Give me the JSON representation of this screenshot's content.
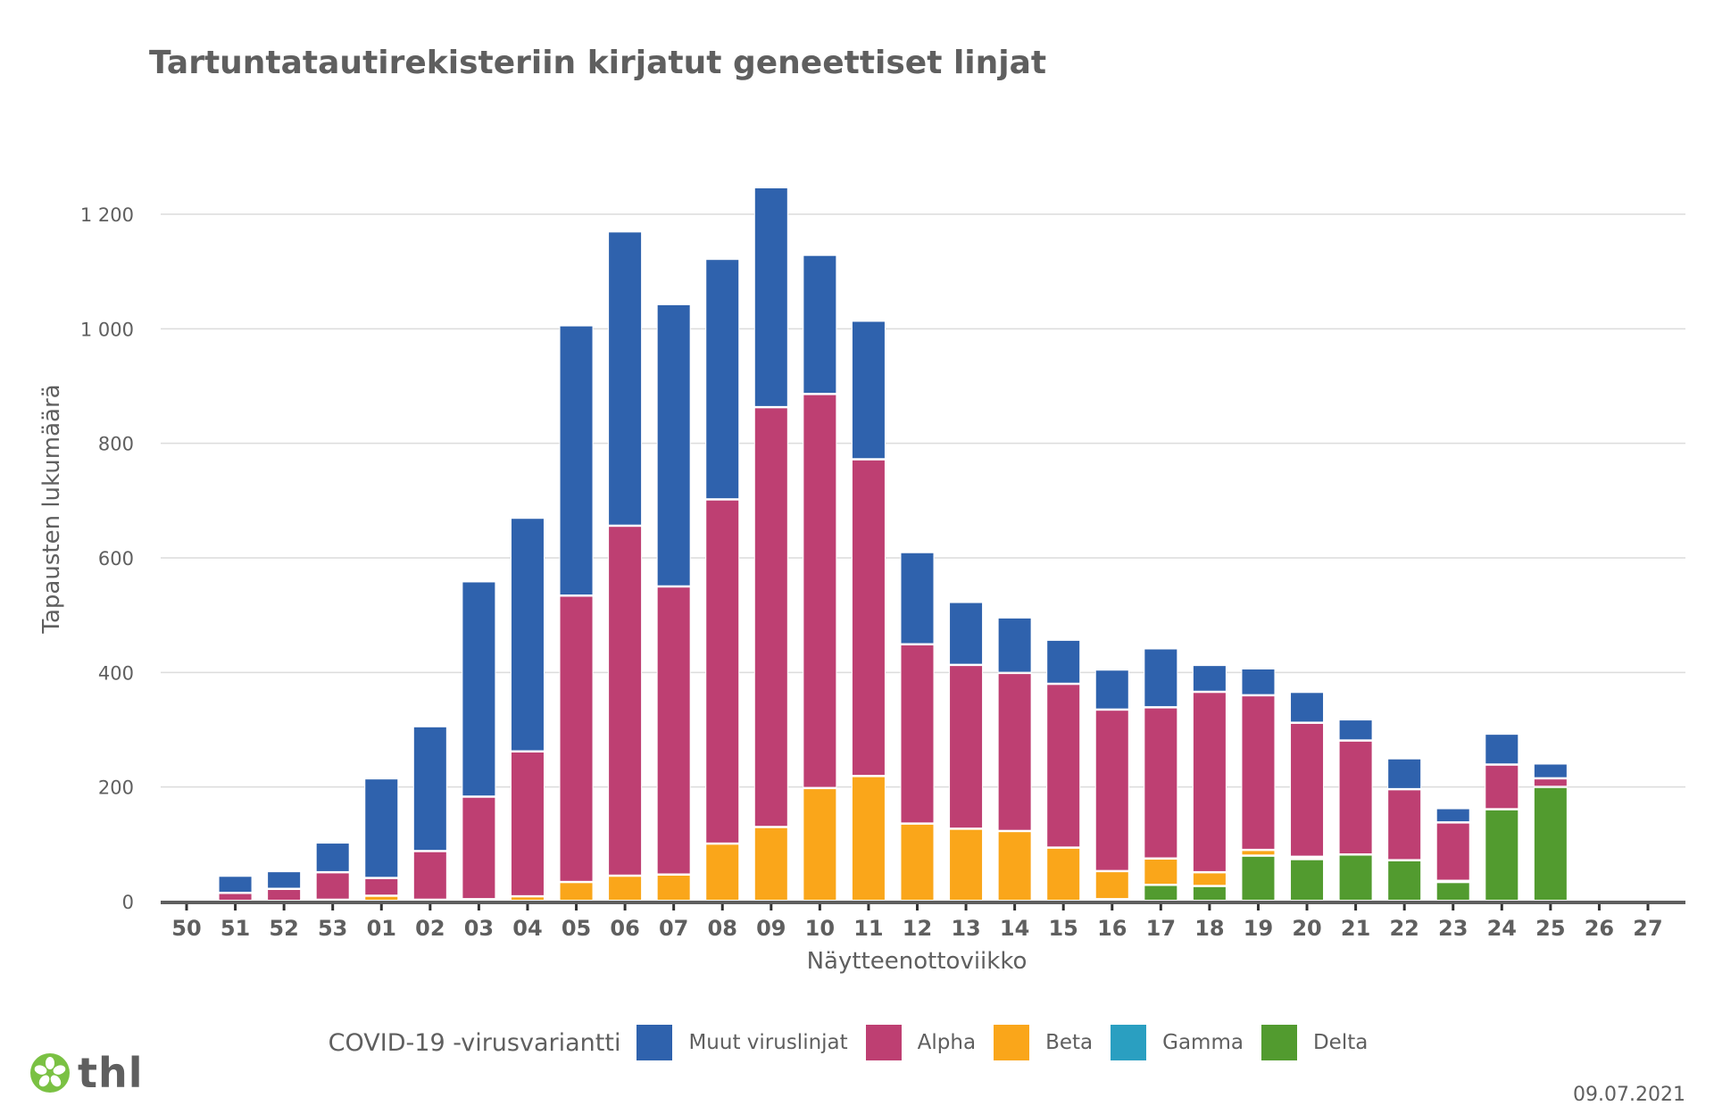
{
  "chart_data": {
    "type": "bar",
    "stacked": true,
    "title": "Tartuntatautirekisteriin kirjatut geneettiset linjat",
    "xlabel": "Näytteenottoviikko",
    "ylabel": "Tapausten lukumäärä",
    "ylim": [
      0,
      1300
    ],
    "yticks": [
      0,
      200,
      400,
      600,
      800,
      1000,
      1200
    ],
    "ytick_labels": [
      "0",
      "200",
      "400",
      "600",
      "800",
      "1 000",
      "1 200"
    ],
    "grid": true,
    "legend_title": "COVID-19 -virusvariantti",
    "legend_placement": "bottom",
    "categories": [
      "50",
      "51",
      "52",
      "53",
      "01",
      "02",
      "03",
      "04",
      "05",
      "06",
      "07",
      "08",
      "09",
      "10",
      "11",
      "12",
      "13",
      "14",
      "15",
      "16",
      "17",
      "18",
      "19",
      "20",
      "21",
      "22",
      "23",
      "24",
      "25",
      "26",
      "27"
    ],
    "series": [
      {
        "name": "Delta",
        "color": "#529b2f",
        "values": [
          0,
          0,
          0,
          0,
          0,
          0,
          0,
          0,
          0,
          0,
          0,
          0,
          0,
          0,
          0,
          0,
          0,
          0,
          0,
          3,
          28,
          26,
          79,
          73,
          81,
          71,
          33,
          160,
          199,
          0,
          0
        ]
      },
      {
        "name": "Gamma",
        "color": "#2a9fc1",
        "values": [
          0,
          0,
          0,
          0,
          0,
          0,
          0,
          0,
          0,
          0,
          0,
          0,
          0,
          0,
          0,
          0,
          0,
          0,
          0,
          0,
          0,
          0,
          0,
          0,
          0,
          0,
          0,
          0,
          0,
          0,
          0
        ]
      },
      {
        "name": "Beta",
        "color": "#faa61a",
        "values": [
          0,
          0,
          0,
          2,
          9,
          2,
          3,
          8,
          33,
          44,
          46,
          100,
          129,
          197,
          218,
          135,
          126,
          122,
          93,
          49,
          46,
          24,
          10,
          4,
          0,
          0,
          2,
          0,
          0,
          0,
          0
        ]
      },
      {
        "name": "Alpha",
        "color": "#be3f72",
        "values": [
          0,
          14,
          21,
          48,
          31,
          85,
          179,
          253,
          500,
          611,
          503,
          601,
          733,
          688,
          553,
          313,
          286,
          276,
          286,
          282,
          264,
          315,
          270,
          234,
          199,
          124,
          102,
          78,
          15,
          0,
          0
        ]
      },
      {
        "name": "Muut viruslinjat",
        "color": "#2f62ad",
        "values": [
          0,
          30,
          31,
          52,
          174,
          218,
          376,
          408,
          472,
          514,
          493,
          420,
          384,
          243,
          242,
          161,
          110,
          97,
          77,
          70,
          103,
          47,
          47,
          54,
          37,
          54,
          25,
          54,
          26,
          0,
          0
        ]
      }
    ],
    "legend_order": [
      "Muut viruslinjat",
      "Alpha",
      "Beta",
      "Gamma",
      "Delta"
    ]
  },
  "footer": {
    "logo_text": "thl",
    "date": "09.07.2021"
  }
}
